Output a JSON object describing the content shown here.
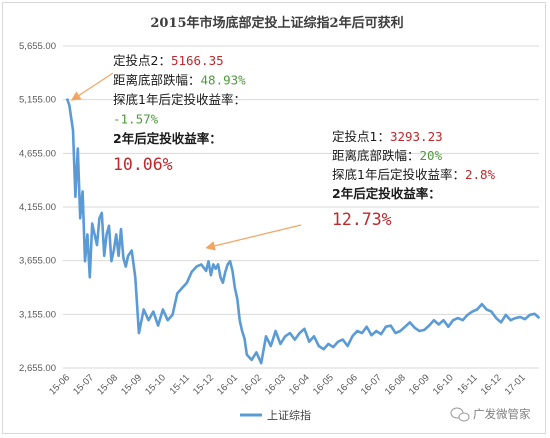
{
  "chart_data": {
    "type": "line",
    "title": "2015年市场底部定投上证综指2年后可获利",
    "ylim": [
      2655,
      5655
    ],
    "yticks": [
      "5,655.00",
      "5,155.00",
      "4,655.00",
      "4,155.00",
      "3,655.00",
      "3,155.00",
      "2,655.00"
    ],
    "ytick_values": [
      5655,
      5155,
      4655,
      4155,
      3655,
      3155,
      2655
    ],
    "xticks": [
      "15-06",
      "15-07",
      "15-08",
      "15-09",
      "15-10",
      "15-11",
      "15-12",
      "16-01",
      "16-02",
      "16-03",
      "16-04",
      "16-05",
      "16-06",
      "16-07",
      "16-08",
      "16-09",
      "16-10",
      "16-11",
      "16-12",
      "17-01"
    ],
    "grid": true,
    "legend": "bottom",
    "colors": {
      "line": "#5b9bd5",
      "arrow": "#f4a460",
      "highlight": "#c0282c",
      "positive": "#4f9a3c"
    },
    "series": [
      {
        "name": "上证综指",
        "x": [
          0,
          0.1,
          0.25,
          0.35,
          0.45,
          0.55,
          0.65,
          0.75,
          0.85,
          0.95,
          1.05,
          1.15,
          1.25,
          1.35,
          1.45,
          1.55,
          1.65,
          1.75,
          1.85,
          1.95,
          2.05,
          2.15,
          2.25,
          2.35,
          2.45,
          2.55,
          2.7,
          2.85,
          3.0,
          3.2,
          3.4,
          3.6,
          3.8,
          4.0,
          4.2,
          4.4,
          4.6,
          4.8,
          5.0,
          5.2,
          5.4,
          5.6,
          5.8,
          5.9,
          6.0,
          6.1,
          6.2,
          6.3,
          6.4,
          6.5,
          6.6,
          6.7,
          6.8,
          6.9,
          7.0,
          7.1,
          7.2,
          7.3,
          7.4,
          7.5,
          7.7,
          7.9,
          8.1,
          8.3,
          8.5,
          8.7,
          8.9,
          9.1,
          9.3,
          9.5,
          9.7,
          9.9,
          10.1,
          10.3,
          10.5,
          10.7,
          10.9,
          11.1,
          11.3,
          11.5,
          11.7,
          11.9,
          12.1,
          12.3,
          12.5,
          12.7,
          12.9,
          13.1,
          13.3,
          13.5,
          13.7,
          13.9,
          14.1,
          14.3,
          14.5,
          14.7,
          14.9,
          15.1,
          15.3,
          15.5,
          15.7,
          15.9,
          16.1,
          16.3,
          16.5,
          16.7,
          16.9,
          17.1,
          17.3,
          17.5,
          17.7,
          17.9,
          18.1,
          18.3,
          18.5,
          18.7,
          18.9,
          19.1,
          19.3,
          19.5,
          19.7
        ],
        "values": [
          5166,
          5100,
          4870,
          4250,
          4700,
          4050,
          4300,
          3650,
          3900,
          3500,
          4000,
          3900,
          3800,
          4050,
          4100,
          3700,
          3900,
          3980,
          3650,
          3750,
          3900,
          3700,
          3950,
          3680,
          3600,
          3700,
          3750,
          3500,
          2980,
          3200,
          3100,
          3180,
          3050,
          3200,
          3100,
          3150,
          3350,
          3400,
          3450,
          3550,
          3600,
          3620,
          3560,
          3650,
          3520,
          3620,
          3580,
          3620,
          3500,
          3450,
          3550,
          3620,
          3650,
          3560,
          3400,
          3300,
          3100,
          3000,
          2930,
          2780,
          2730,
          2800,
          2700,
          2950,
          2860,
          3000,
          2880,
          2950,
          2980,
          2920,
          2980,
          3020,
          2900,
          2950,
          2860,
          2830,
          2880,
          2850,
          2900,
          2920,
          2860,
          2950,
          3000,
          2980,
          3040,
          2960,
          3000,
          2970,
          3040,
          3050,
          2980,
          3000,
          3040,
          3080,
          3030,
          3000,
          3010,
          3050,
          3100,
          3060,
          3100,
          3040,
          3100,
          3120,
          3100,
          3150,
          3180,
          3200,
          3250,
          3200,
          3180,
          3120,
          3080,
          3150,
          3100,
          3120,
          3130,
          3110,
          3150,
          3160,
          3120
        ]
      }
    ],
    "annotations": [
      {
        "lines": [
          [
            {
              "text": "定投点2："
            },
            {
              "text": "5166.35",
              "style": "red"
            }
          ],
          [
            {
              "text": "距离底部跌幅："
            },
            {
              "text": "48.93%",
              "style": "green"
            }
          ],
          [
            {
              "text": "探底1年后定投收益率："
            }
          ],
          [
            {
              "text": "-1.57%",
              "style": "green"
            }
          ],
          [
            {
              "text": "2年后定投收益率：",
              "style": "bold"
            }
          ]
        ],
        "big": "10.06%"
      },
      {
        "lines": [
          [
            {
              "text": "定投点1："
            },
            {
              "text": "3293.23",
              "style": "red"
            }
          ],
          [
            {
              "text": "距离底部跌幅："
            },
            {
              "text": "20%",
              "style": "green"
            }
          ],
          [
            {
              "text": "探底1年后定投收益率："
            },
            {
              "text": "2.8%",
              "style": "red"
            }
          ],
          [
            {
              "text": "2年后定投收益率：",
              "style": "bold"
            }
          ]
        ],
        "big": "12.73%"
      }
    ]
  },
  "watermark": {
    "text": "广发微管家",
    "icon": "wechat-icon"
  }
}
